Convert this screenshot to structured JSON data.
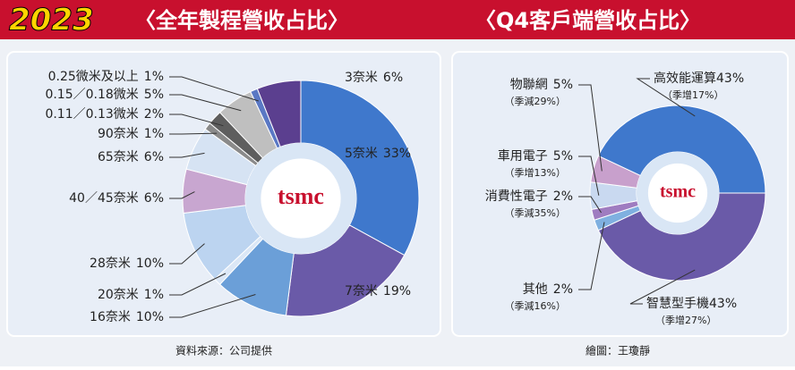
{
  "header": {
    "year": "2023"
  },
  "logo": "tsmc",
  "chart_data": [
    {
      "type": "pie",
      "title": "〈全年製程營收占比〉",
      "categories": [
        "5奈米",
        "7奈米",
        "16奈米",
        "20奈米",
        "28奈米",
        "40／45奈米",
        "65奈米",
        "90奈米",
        "0.11／0.13微米",
        "0.15／0.18微米",
        "0.25微米及以上",
        "3奈米"
      ],
      "values": [
        33,
        19,
        10,
        1,
        10,
        6,
        6,
        1,
        2,
        5,
        1,
        6
      ],
      "value_labels": [
        "33%",
        "19%",
        "10%",
        "1%",
        "10%",
        "6%",
        "6%",
        "1%",
        "2%",
        "5%",
        "1%",
        "6%"
      ],
      "colors": [
        "#3f78cc",
        "#6a5aa8",
        "#6b9fd8",
        "#dbe7f6",
        "#bcd4f0",
        "#c8a6d0",
        "#d6e3f3",
        "#8a8a8a",
        "#5e5e5e",
        "#bfbfbf",
        "#5a78c4",
        "#5b3f8f"
      ],
      "source": "資料來源：公司提供"
    },
    {
      "type": "pie",
      "title": "〈Q4客戶端營收占比〉",
      "categories": [
        "智慧型手機",
        "其他",
        "消費性電子",
        "車用電子",
        "物聯網",
        "高效能運算"
      ],
      "values": [
        43,
        2,
        2,
        5,
        5,
        43
      ],
      "value_labels": [
        "43%",
        "2%",
        "2%",
        "5%",
        "5%",
        "43%"
      ],
      "notes": [
        "（季增27%）",
        "（季減16%）",
        "（季減35%）",
        "（季增13%）",
        "（季減29%）",
        "（季增17%）"
      ],
      "colors": [
        "#6a5aa8",
        "#7fb0e0",
        "#9f7cc0",
        "#c9d9f0",
        "#c8a0cc",
        "#3f78cc"
      ],
      "source": "繪圖：王瓊靜"
    }
  ]
}
